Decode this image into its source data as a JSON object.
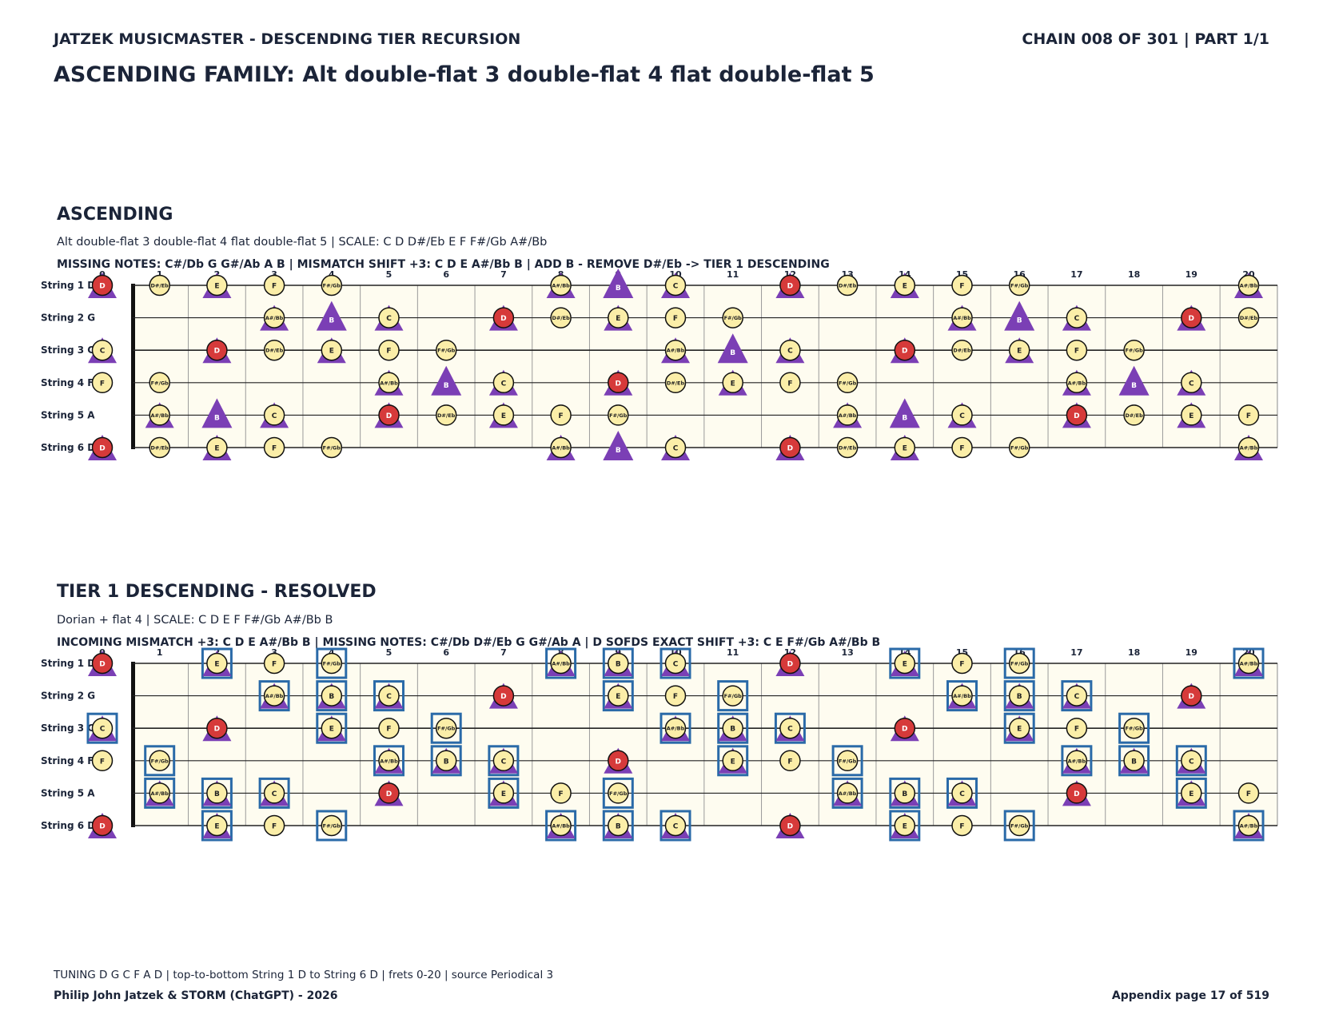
{
  "header": {
    "left": "JATZEK MUSICMASTER - DESCENDING TIER RECURSION",
    "right": "CHAIN 008 OF 301  |  PART 1/1",
    "title": "ASCENDING FAMILY: Alt double-flat 3 double-flat 4 flat double-flat 5"
  },
  "sections": [
    {
      "title": "ASCENDING",
      "subtitle": "Alt double-flat 3 double-flat 4 flat double-flat 5  |  SCALE: C D D#/Eb E F F#/Gb A#/Bb",
      "info": "MISSING NOTES: C#/Db G G#/Ab A B  |  MISMATCH SHIFT +3: C D E A#/Bb B  |  ADD B - REMOVE D#/Eb -> TIER 1 DESCENDING",
      "strings": [
        "String 1 D",
        "String 2 G",
        "String 3 C",
        "String 4 F",
        "String 5 A",
        "String 6 D"
      ],
      "frets": [
        "0",
        "1",
        "2",
        "3",
        "4",
        "5",
        "6",
        "7",
        "8",
        "9",
        "10",
        "11",
        "12",
        "13",
        "14",
        "15",
        "16",
        "17",
        "18",
        "19",
        "20"
      ],
      "rows": [
        [
          {
            "f": 0,
            "n": "D",
            "r": 1,
            "t": 1
          },
          {
            "f": 1,
            "n": "D#/Eb"
          },
          {
            "f": 2,
            "n": "E",
            "t": 1
          },
          {
            "f": 3,
            "n": "F"
          },
          {
            "f": 4,
            "n": "F#/Gb"
          },
          {
            "f": 8,
            "n": "A#/Bb",
            "t": 1
          },
          {
            "f": 9,
            "n": "B",
            "t": 2
          },
          {
            "f": 10,
            "n": "C",
            "t": 1
          },
          {
            "f": 12,
            "n": "D",
            "r": 1,
            "t": 1
          },
          {
            "f": 13,
            "n": "D#/Eb"
          },
          {
            "f": 14,
            "n": "E",
            "t": 1
          },
          {
            "f": 15,
            "n": "F"
          },
          {
            "f": 16,
            "n": "F#/Gb"
          },
          {
            "f": 20,
            "n": "A#/Bb",
            "t": 1
          }
        ],
        [
          {
            "f": 3,
            "n": "A#/Bb",
            "t": 1
          },
          {
            "f": 4,
            "n": "B",
            "t": 2
          },
          {
            "f": 5,
            "n": "C",
            "t": 1
          },
          {
            "f": 7,
            "n": "D",
            "r": 1,
            "t": 1
          },
          {
            "f": 8,
            "n": "D#/Eb"
          },
          {
            "f": 9,
            "n": "E",
            "t": 1
          },
          {
            "f": 10,
            "n": "F"
          },
          {
            "f": 11,
            "n": "F#/Gb"
          },
          {
            "f": 15,
            "n": "A#/Bb",
            "t": 1
          },
          {
            "f": 16,
            "n": "B",
            "t": 2
          },
          {
            "f": 17,
            "n": "C",
            "t": 1
          },
          {
            "f": 19,
            "n": "D",
            "r": 1,
            "t": 1
          },
          {
            "f": 20,
            "n": "D#/Eb"
          }
        ],
        [
          {
            "f": 0,
            "n": "C",
            "t": 1
          },
          {
            "f": 2,
            "n": "D",
            "r": 1,
            "t": 1
          },
          {
            "f": 3,
            "n": "D#/Eb"
          },
          {
            "f": 4,
            "n": "E",
            "t": 1
          },
          {
            "f": 5,
            "n": "F"
          },
          {
            "f": 6,
            "n": "F#/Gb"
          },
          {
            "f": 10,
            "n": "A#/Bb",
            "t": 1
          },
          {
            "f": 11,
            "n": "B",
            "t": 2
          },
          {
            "f": 12,
            "n": "C",
            "t": 1
          },
          {
            "f": 14,
            "n": "D",
            "r": 1,
            "t": 1
          },
          {
            "f": 15,
            "n": "D#/Eb"
          },
          {
            "f": 16,
            "n": "E",
            "t": 1
          },
          {
            "f": 17,
            "n": "F"
          },
          {
            "f": 18,
            "n": "F#/Gb"
          }
        ],
        [
          {
            "f": 0,
            "n": "F"
          },
          {
            "f": 1,
            "n": "F#/Gb"
          },
          {
            "f": 5,
            "n": "A#/Bb",
            "t": 1
          },
          {
            "f": 6,
            "n": "B",
            "t": 2
          },
          {
            "f": 7,
            "n": "C",
            "t": 1
          },
          {
            "f": 9,
            "n": "D",
            "r": 1,
            "t": 1
          },
          {
            "f": 10,
            "n": "D#/Eb"
          },
          {
            "f": 11,
            "n": "E",
            "t": 1
          },
          {
            "f": 12,
            "n": "F"
          },
          {
            "f": 13,
            "n": "F#/Gb"
          },
          {
            "f": 17,
            "n": "A#/Bb",
            "t": 1
          },
          {
            "f": 18,
            "n": "B",
            "t": 2
          },
          {
            "f": 19,
            "n": "C",
            "t": 1
          }
        ],
        [
          {
            "f": 1,
            "n": "A#/Bb",
            "t": 1
          },
          {
            "f": 2,
            "n": "B",
            "t": 2
          },
          {
            "f": 3,
            "n": "C",
            "t": 1
          },
          {
            "f": 5,
            "n": "D",
            "r": 1,
            "t": 1
          },
          {
            "f": 6,
            "n": "D#/Eb"
          },
          {
            "f": 7,
            "n": "E",
            "t": 1
          },
          {
            "f": 8,
            "n": "F"
          },
          {
            "f": 9,
            "n": "F#/Gb"
          },
          {
            "f": 13,
            "n": "A#/Bb",
            "t": 1
          },
          {
            "f": 14,
            "n": "B",
            "t": 2
          },
          {
            "f": 15,
            "n": "C",
            "t": 1
          },
          {
            "f": 17,
            "n": "D",
            "r": 1,
            "t": 1
          },
          {
            "f": 18,
            "n": "D#/Eb"
          },
          {
            "f": 19,
            "n": "E",
            "t": 1
          },
          {
            "f": 20,
            "n": "F"
          }
        ],
        [
          {
            "f": 0,
            "n": "D",
            "r": 1,
            "t": 1
          },
          {
            "f": 1,
            "n": "D#/Eb"
          },
          {
            "f": 2,
            "n": "E",
            "t": 1
          },
          {
            "f": 3,
            "n": "F"
          },
          {
            "f": 4,
            "n": "F#/Gb"
          },
          {
            "f": 8,
            "n": "A#/Bb",
            "t": 1
          },
          {
            "f": 9,
            "n": "B",
            "t": 2
          },
          {
            "f": 10,
            "n": "C",
            "t": 1
          },
          {
            "f": 12,
            "n": "D",
            "r": 1,
            "t": 1
          },
          {
            "f": 13,
            "n": "D#/Eb"
          },
          {
            "f": 14,
            "n": "E",
            "t": 1
          },
          {
            "f": 15,
            "n": "F"
          },
          {
            "f": 16,
            "n": "F#/Gb"
          },
          {
            "f": 20,
            "n": "A#/Bb",
            "t": 1
          }
        ]
      ]
    },
    {
      "title": "TIER 1 DESCENDING - RESOLVED",
      "subtitle": "Dorian + flat 4  |  SCALE: C D E F F#/Gb A#/Bb B",
      "info": "INCOMING MISMATCH +3: C D E A#/Bb B  |  MISSING NOTES: C#/Db D#/Eb G G#/Ab A  |  D SOFDS EXACT SHIFT +3: C E F#/Gb A#/Bb B",
      "strings": [
        "String 1 D",
        "String 2 G",
        "String 3 C",
        "String 4 F",
        "String 5 A",
        "String 6 D"
      ],
      "frets": [
        "0",
        "1",
        "2",
        "3",
        "4",
        "5",
        "6",
        "7",
        "8",
        "9",
        "10",
        "11",
        "12",
        "13",
        "14",
        "15",
        "16",
        "17",
        "18",
        "19",
        "20"
      ],
      "rows": [
        [
          {
            "f": 0,
            "n": "D",
            "r": 1,
            "t": 1
          },
          {
            "f": 2,
            "n": "E",
            "t": 1,
            "b": 1
          },
          {
            "f": 3,
            "n": "F"
          },
          {
            "f": 4,
            "n": "F#/Gb",
            "b": 1
          },
          {
            "f": 8,
            "n": "A#/Bb",
            "t": 1,
            "b": 1
          },
          {
            "f": 9,
            "n": "B",
            "t": 1,
            "b": 1
          },
          {
            "f": 10,
            "n": "C",
            "t": 1,
            "b": 1
          },
          {
            "f": 12,
            "n": "D",
            "r": 1,
            "t": 1
          },
          {
            "f": 14,
            "n": "E",
            "t": 1,
            "b": 1
          },
          {
            "f": 15,
            "n": "F"
          },
          {
            "f": 16,
            "n": "F#/Gb",
            "b": 1
          },
          {
            "f": 20,
            "n": "A#/Bb",
            "t": 1,
            "b": 1
          }
        ],
        [
          {
            "f": 3,
            "n": "A#/Bb",
            "t": 1,
            "b": 1
          },
          {
            "f": 4,
            "n": "B",
            "t": 1,
            "b": 1
          },
          {
            "f": 5,
            "n": "C",
            "t": 1,
            "b": 1
          },
          {
            "f": 7,
            "n": "D",
            "r": 1,
            "t": 1
          },
          {
            "f": 9,
            "n": "E",
            "t": 1,
            "b": 1
          },
          {
            "f": 10,
            "n": "F"
          },
          {
            "f": 11,
            "n": "F#/Gb",
            "b": 1
          },
          {
            "f": 15,
            "n": "A#/Bb",
            "t": 1,
            "b": 1
          },
          {
            "f": 16,
            "n": "B",
            "t": 1,
            "b": 1
          },
          {
            "f": 17,
            "n": "C",
            "t": 1,
            "b": 1
          },
          {
            "f": 19,
            "n": "D",
            "r": 1,
            "t": 1
          }
        ],
        [
          {
            "f": 0,
            "n": "C",
            "t": 1,
            "b": 1
          },
          {
            "f": 2,
            "n": "D",
            "r": 1,
            "t": 1
          },
          {
            "f": 4,
            "n": "E",
            "t": 1,
            "b": 1
          },
          {
            "f": 5,
            "n": "F"
          },
          {
            "f": 6,
            "n": "F#/Gb",
            "b": 1
          },
          {
            "f": 10,
            "n": "A#/Bb",
            "t": 1,
            "b": 1
          },
          {
            "f": 11,
            "n": "B",
            "t": 1,
            "b": 1
          },
          {
            "f": 12,
            "n": "C",
            "t": 1,
            "b": 1
          },
          {
            "f": 14,
            "n": "D",
            "r": 1,
            "t": 1
          },
          {
            "f": 16,
            "n": "E",
            "t": 1,
            "b": 1
          },
          {
            "f": 17,
            "n": "F"
          },
          {
            "f": 18,
            "n": "F#/Gb",
            "b": 1
          }
        ],
        [
          {
            "f": 0,
            "n": "F"
          },
          {
            "f": 1,
            "n": "F#/Gb",
            "b": 1
          },
          {
            "f": 5,
            "n": "A#/Bb",
            "t": 1,
            "b": 1
          },
          {
            "f": 6,
            "n": "B",
            "t": 1,
            "b": 1
          },
          {
            "f": 7,
            "n": "C",
            "t": 1,
            "b": 1
          },
          {
            "f": 9,
            "n": "D",
            "r": 1,
            "t": 1
          },
          {
            "f": 11,
            "n": "E",
            "t": 1,
            "b": 1
          },
          {
            "f": 12,
            "n": "F"
          },
          {
            "f": 13,
            "n": "F#/Gb",
            "b": 1
          },
          {
            "f": 17,
            "n": "A#/Bb",
            "t": 1,
            "b": 1
          },
          {
            "f": 18,
            "n": "B",
            "t": 1,
            "b": 1
          },
          {
            "f": 19,
            "n": "C",
            "t": 1,
            "b": 1
          }
        ],
        [
          {
            "f": 1,
            "n": "A#/Bb",
            "t": 1,
            "b": 1
          },
          {
            "f": 2,
            "n": "B",
            "t": 1,
            "b": 1
          },
          {
            "f": 3,
            "n": "C",
            "t": 1,
            "b": 1
          },
          {
            "f": 5,
            "n": "D",
            "r": 1,
            "t": 1
          },
          {
            "f": 7,
            "n": "E",
            "t": 1,
            "b": 1
          },
          {
            "f": 8,
            "n": "F"
          },
          {
            "f": 9,
            "n": "F#/Gb",
            "b": 1
          },
          {
            "f": 13,
            "n": "A#/Bb",
            "t": 1,
            "b": 1
          },
          {
            "f": 14,
            "n": "B",
            "t": 1,
            "b": 1
          },
          {
            "f": 15,
            "n": "C",
            "t": 1,
            "b": 1
          },
          {
            "f": 17,
            "n": "D",
            "r": 1,
            "t": 1
          },
          {
            "f": 19,
            "n": "E",
            "t": 1,
            "b": 1
          },
          {
            "f": 20,
            "n": "F"
          }
        ],
        [
          {
            "f": 0,
            "n": "D",
            "r": 1,
            "t": 1
          },
          {
            "f": 2,
            "n": "E",
            "t": 1,
            "b": 1
          },
          {
            "f": 3,
            "n": "F"
          },
          {
            "f": 4,
            "n": "F#/Gb",
            "b": 1
          },
          {
            "f": 8,
            "n": "A#/Bb",
            "t": 1,
            "b": 1
          },
          {
            "f": 9,
            "n": "B",
            "t": 1,
            "b": 1
          },
          {
            "f": 10,
            "n": "C",
            "t": 1,
            "b": 1
          },
          {
            "f": 12,
            "n": "D",
            "r": 1,
            "t": 1
          },
          {
            "f": 14,
            "n": "E",
            "t": 1,
            "b": 1
          },
          {
            "f": 15,
            "n": "F"
          },
          {
            "f": 16,
            "n": "F#/Gb",
            "b": 1
          },
          {
            "f": 20,
            "n": "A#/Bb",
            "t": 1,
            "b": 1
          }
        ]
      ]
    }
  ],
  "footer": {
    "tuning": "TUNING D G C F A D | top-to-bottom String 1 D to String 6 D | frets 0-20 | source Periodical 3",
    "credit": "Philip John Jatzek & STORM (ChatGPT) - 2026",
    "page": "Appendix page 17 of 519"
  },
  "colors": {
    "root": "#d63a3a",
    "note": "#fbeea8",
    "triangle": "#7b3fb5",
    "highlight_box": "#2a6aa8",
    "board_bg": "#fefcf0",
    "text": "#1b2438"
  }
}
